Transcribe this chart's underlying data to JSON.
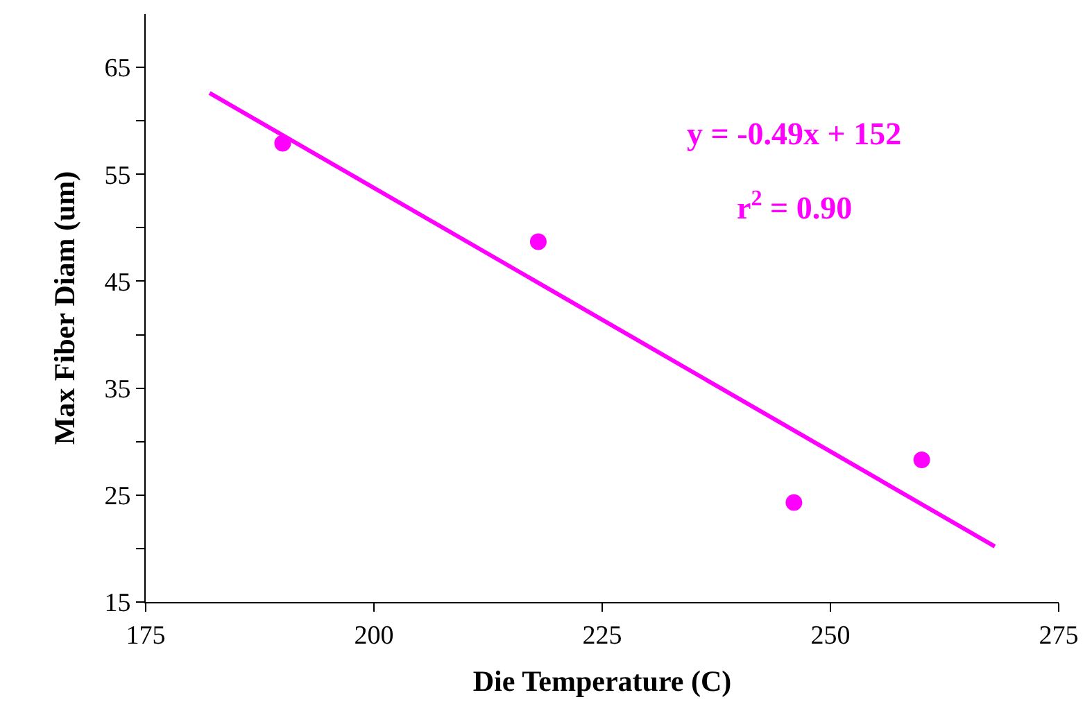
{
  "chart_data": {
    "type": "scatter",
    "xlabel": "Die Temperature (C)",
    "ylabel": "Max Fiber Diam (um)",
    "xlim": [
      175,
      275
    ],
    "xticks": [
      175,
      200,
      225,
      250,
      275
    ],
    "ylim": [
      15,
      70
    ],
    "yticks": [
      15,
      {
        "value": 20,
        "label": null
      },
      25,
      {
        "value": 30,
        "label": null
      },
      35,
      {
        "value": 40,
        "label": null
      },
      45,
      {
        "value": 50,
        "label": null
      },
      55,
      {
        "value": 60,
        "label": null
      },
      65
    ],
    "series": [
      {
        "color": "#ff00ff",
        "marker": "circle",
        "x": [
          190,
          218,
          246,
          260
        ],
        "values": [
          57.9,
          48.7,
          24.3,
          28.3
        ]
      },
      {
        "type": "line",
        "color": "#ff00ff",
        "x": [
          182,
          268
        ],
        "values": [
          62.6,
          20.2
        ],
        "line_style": "solid"
      }
    ],
    "annotations": [
      "y = -0.49x + 152",
      "r$^{2}$ = 0.90"
    ]
  }
}
